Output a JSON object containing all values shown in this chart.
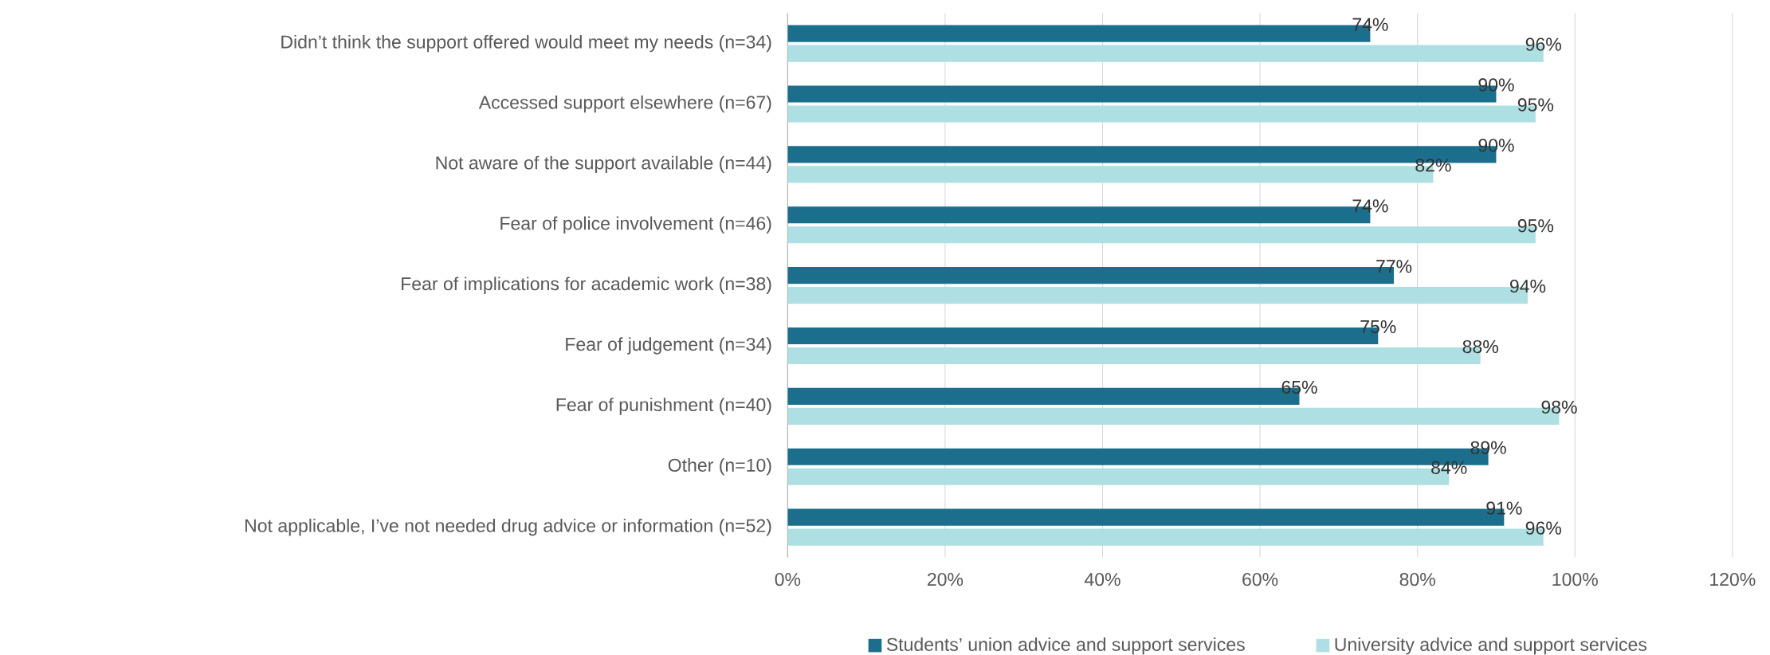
{
  "chart_data": {
    "type": "bar",
    "orientation": "horizontal",
    "categories": [
      "Didn’t think the support offered would meet my needs (n=34)",
      "Accessed support elsewhere (n=67)",
      "Not aware of the support available (n=44)",
      "Fear of police involvement (n=46)",
      "Fear of implications for academic work (n=38)",
      "Fear of judgement (n=34)",
      "Fear of punishment (n=40)",
      "Other (n=10)",
      "Not applicable, I’ve not needed drug advice or information (n=52)"
    ],
    "series": [
      {
        "name": "Students’ union advice and support services",
        "color": "#1b6f8c",
        "values": [
          74,
          90,
          90,
          74,
          77,
          75,
          65,
          89,
          91
        ],
        "value_labels": [
          "74%",
          "90%",
          "90%",
          "74%",
          "77%",
          "75%",
          "65%",
          "89%",
          "91%"
        ]
      },
      {
        "name": "University advice and support services",
        "color": "#aedfe3",
        "values": [
          96,
          95,
          82,
          95,
          94,
          88,
          98,
          84,
          96
        ],
        "value_labels": [
          "96%",
          "95%",
          "82%",
          "95%",
          "94%",
          "88%",
          "98%",
          "84%",
          "96%"
        ]
      }
    ],
    "xlim": [
      0,
      120
    ],
    "xticks": [
      {
        "value": 0,
        "label": "0%"
      },
      {
        "value": 20,
        "label": "20%"
      },
      {
        "value": 40,
        "label": "40%"
      },
      {
        "value": 60,
        "label": "60%"
      },
      {
        "value": 80,
        "label": "80%"
      },
      {
        "value": 100,
        "label": "100%"
      },
      {
        "value": 120,
        "label": "120%"
      }
    ],
    "grid": "x",
    "legend": "bottom"
  }
}
